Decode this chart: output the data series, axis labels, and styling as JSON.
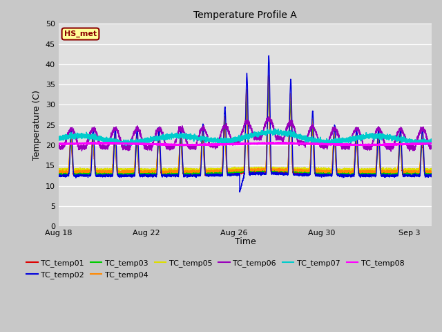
{
  "title": "Temperature Profile A",
  "xlabel": "Time",
  "ylabel": "Temperature (C)",
  "ylim": [
    0,
    50
  ],
  "yticks": [
    0,
    5,
    10,
    15,
    20,
    25,
    30,
    35,
    40,
    45,
    50
  ],
  "fig_bg_color": "#c8c8c8",
  "plot_bg_color": "#e0e0e0",
  "annotation_text": "HS_met",
  "annotation_bg": "#ffff99",
  "annotation_border": "#8b0000",
  "series_colors": {
    "TC_temp01": "#dd0000",
    "TC_temp02": "#0000dd",
    "TC_temp03": "#00cc00",
    "TC_temp04": "#ff8800",
    "TC_temp05": "#dddd00",
    "TC_temp06": "#9900bb",
    "TC_temp07": "#00cccc",
    "TC_temp08": "#ff00ff"
  },
  "x_tick_labels": [
    "Aug 18",
    "Aug 22",
    "Aug 26",
    "Aug 30",
    "Sep 3"
  ],
  "x_tick_positions": [
    0,
    4,
    8,
    12,
    16
  ]
}
